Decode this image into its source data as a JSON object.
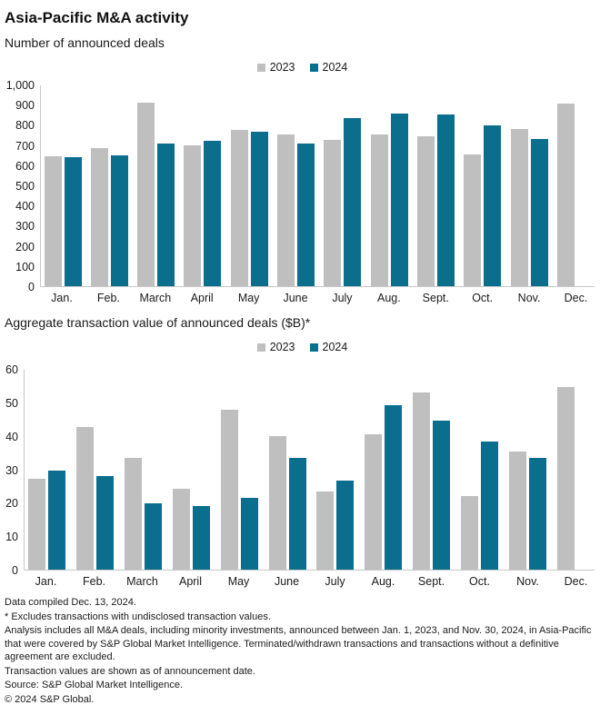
{
  "page": {
    "title": "Asia-Pacific M&A activity",
    "subtitle": "Number of announced deals",
    "section2_title": "Aggregate transaction value of announced deals ($B)*",
    "footnotes": [
      "Data compiled Dec. 13, 2024.",
      "* Excludes transactions with undisclosed transaction values.",
      "Analysis includes all M&A deals, including minority investments, announced between Jan. 1, 2023, and Nov. 30, 2024, in Asia-Pacific that were covered by S&P Global Market Intelligence. Terminated/withdrawn transactions and transactions without a definitive agreement are excluded.",
      "Transaction values are shown as of announcement date.",
      "Source: S&P Global Market Intelligence.",
      "© 2024 S&P Global."
    ]
  },
  "colors": {
    "series_2023": "#bfbfbf",
    "series_2024": "#0a6e8c",
    "axis_line": "#c8c8c8",
    "text": "#1a1a1a"
  },
  "chart_data": [
    {
      "type": "bar",
      "title": "Number of announced deals",
      "xlabel": "",
      "ylabel": "",
      "ylim": [
        0,
        1000
      ],
      "grid": false,
      "legend_position": "top-center",
      "yticks": [
        0,
        100,
        200,
        300,
        400,
        500,
        600,
        700,
        800,
        900,
        1000
      ],
      "ytick_labels": [
        "0",
        "100",
        "200",
        "300",
        "400",
        "500",
        "600",
        "700",
        "800",
        "900",
        "1,000"
      ],
      "categories": [
        "Jan.",
        "Feb.",
        "March",
        "April",
        "May",
        "June",
        "July",
        "Aug.",
        "Sept.",
        "Oct.",
        "Nov.",
        "Dec."
      ],
      "series": [
        {
          "name": "2023",
          "color": "#bfbfbf",
          "values": [
            650,
            690,
            915,
            705,
            780,
            755,
            730,
            755,
            750,
            660,
            785,
            910
          ]
        },
        {
          "name": "2024",
          "color": "#0a6e8c",
          "values": [
            645,
            655,
            710,
            725,
            770,
            710,
            840,
            860,
            855,
            800,
            735,
            null
          ]
        }
      ]
    },
    {
      "type": "bar",
      "title": "Aggregate transaction value of announced deals ($B)*",
      "xlabel": "",
      "ylabel": "",
      "ylim": [
        0,
        60
      ],
      "grid": false,
      "legend_position": "top-center",
      "yticks": [
        0,
        10,
        20,
        30,
        40,
        50,
        60
      ],
      "ytick_labels": [
        "0",
        "10",
        "20",
        "30",
        "40",
        "50",
        "60"
      ],
      "categories": [
        "Jan.",
        "Feb.",
        "March",
        "April",
        "May",
        "June",
        "July",
        "Aug.",
        "Sept.",
        "Oct.",
        "Nov.",
        "Dec."
      ],
      "series": [
        {
          "name": "2023",
          "color": "#bfbfbf",
          "values": [
            27.5,
            42.8,
            33.8,
            24.5,
            48,
            40.3,
            23.5,
            40.8,
            53.2,
            22.4,
            35.5,
            54.8
          ]
        },
        {
          "name": "2024",
          "color": "#0a6e8c",
          "values": [
            29.9,
            28.2,
            20,
            19.4,
            21.7,
            33.8,
            27,
            49.3,
            44.8,
            38.6,
            33.8,
            null
          ]
        }
      ]
    }
  ]
}
